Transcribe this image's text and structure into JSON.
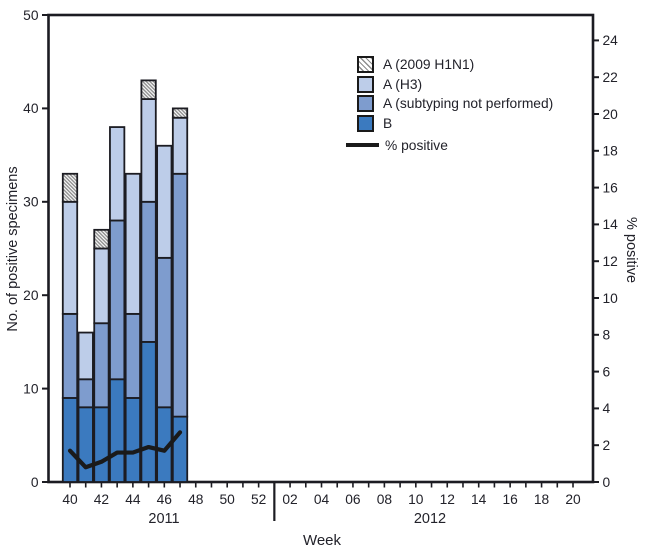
{
  "figure": {
    "left_axis": {
      "title": "No. of positive specimens",
      "ticks": [
        0,
        10,
        20,
        30,
        40,
        50
      ],
      "max": 50
    },
    "right_axis": {
      "title": "% positive",
      "ticks": [
        0,
        2,
        4,
        6,
        8,
        10,
        12,
        14,
        16,
        18,
        20,
        22,
        24
      ],
      "max": 24
    },
    "x_axis": {
      "title": "Week",
      "years": [
        {
          "year": "2011",
          "first_week": 40,
          "num_weeks": 13,
          "tick_labels": [
            "40",
            "42",
            "44",
            "46",
            "48",
            "50",
            "52"
          ]
        },
        {
          "year": "2012",
          "first_week": 1,
          "num_weeks": 20,
          "tick_labels": [
            "02",
            "04",
            "06",
            "08",
            "10",
            "12",
            "14",
            "16",
            "18",
            "20"
          ]
        }
      ]
    }
  },
  "legend": {
    "items": [
      {
        "label": "A (2009 H1N1)",
        "pattern": "hatch"
      },
      {
        "label": "A (H3)",
        "color": "#bdcde9"
      },
      {
        "label": "A (subtyping not performed)",
        "color": "#7e9cce"
      },
      {
        "label": "B",
        "color": "#3b7abf"
      }
    ],
    "line_label": "% positive"
  },
  "colors": {
    "bar_b": "#3b7abf",
    "bar_a_subtyping": "#7e9cce",
    "bar_a_h3": "#bdcde9",
    "hatch_stripe": "#8e8e8e",
    "ink": "#1c1c22"
  },
  "chart_data": {
    "type": "bar",
    "subtype": "stacked_bars_with_percent_line",
    "categories_year": "2011",
    "categories": [
      "40",
      "41",
      "42",
      "43",
      "44",
      "45",
      "46",
      "47"
    ],
    "series": [
      {
        "key": "B",
        "name": "B",
        "color": "#3b7abf",
        "values": [
          9,
          8,
          8,
          11,
          9,
          15,
          8,
          7
        ]
      },
      {
        "key": "A-subtyping-not-performed",
        "name": "A (subtyping not performed)",
        "color": "#7e9cce",
        "values": [
          9,
          3,
          9,
          17,
          9,
          15,
          16,
          26
        ]
      },
      {
        "key": "A-H3",
        "name": "A (H3)",
        "color": "#bdcde9",
        "values": [
          12,
          5,
          8,
          10,
          15,
          11,
          12,
          6
        ]
      },
      {
        "key": "A-2009-H1N1",
        "name": "A (2009 H1N1)",
        "color": "hatch",
        "values": [
          3,
          0,
          2,
          0,
          0,
          2,
          0,
          1
        ]
      }
    ],
    "bar_totals": [
      33,
      16,
      27,
      38,
      33,
      43,
      36,
      40
    ],
    "line": {
      "name": "% positive",
      "axis": "right",
      "values": [
        1.7,
        0.8,
        1.1,
        1.6,
        1.6,
        1.9,
        1.7,
        2.7
      ]
    },
    "ylim_left": [
      0,
      50
    ],
    "ylim_right": [
      0,
      24
    ],
    "xlabel": "Week",
    "ylabel_left": "No. of positive specimens",
    "ylabel_right": "% positive",
    "grid": false,
    "legend_position": "upper-center-right"
  }
}
